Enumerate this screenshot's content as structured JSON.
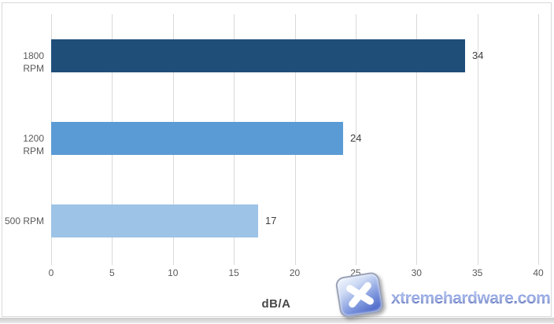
{
  "chart_data": {
    "type": "bar",
    "orientation": "horizontal",
    "title": "",
    "xlabel": "dB/A",
    "ylabel": "",
    "categories": [
      "1800 RPM",
      "1200 RPM",
      "500 RPM"
    ],
    "values": [
      34,
      24,
      17
    ],
    "value_labels": [
      "34",
      "24",
      "17"
    ],
    "bar_colors": [
      "#1f4e79",
      "#5b9bd5",
      "#9dc3e6"
    ],
    "xlim": [
      0,
      40
    ],
    "x_ticks": [
      0,
      5,
      10,
      15,
      20,
      25,
      30,
      35,
      40
    ],
    "grid": true,
    "legend": false
  },
  "axis": {
    "title": "dB/A"
  },
  "watermark": {
    "text": "xtremehardware.com",
    "icon": "x-logo"
  },
  "colors": {
    "gridline": "#d9d9d9",
    "frame_border": "#d9d9d9",
    "tick_label": "#595959",
    "category_label": "#595959",
    "value_label": "#3f3f3f",
    "bar_dark": "#1f4e79",
    "bar_medium": "#5b9bd5",
    "bar_light": "#9dc3e6",
    "watermark_blue": "#4a67bf"
  }
}
